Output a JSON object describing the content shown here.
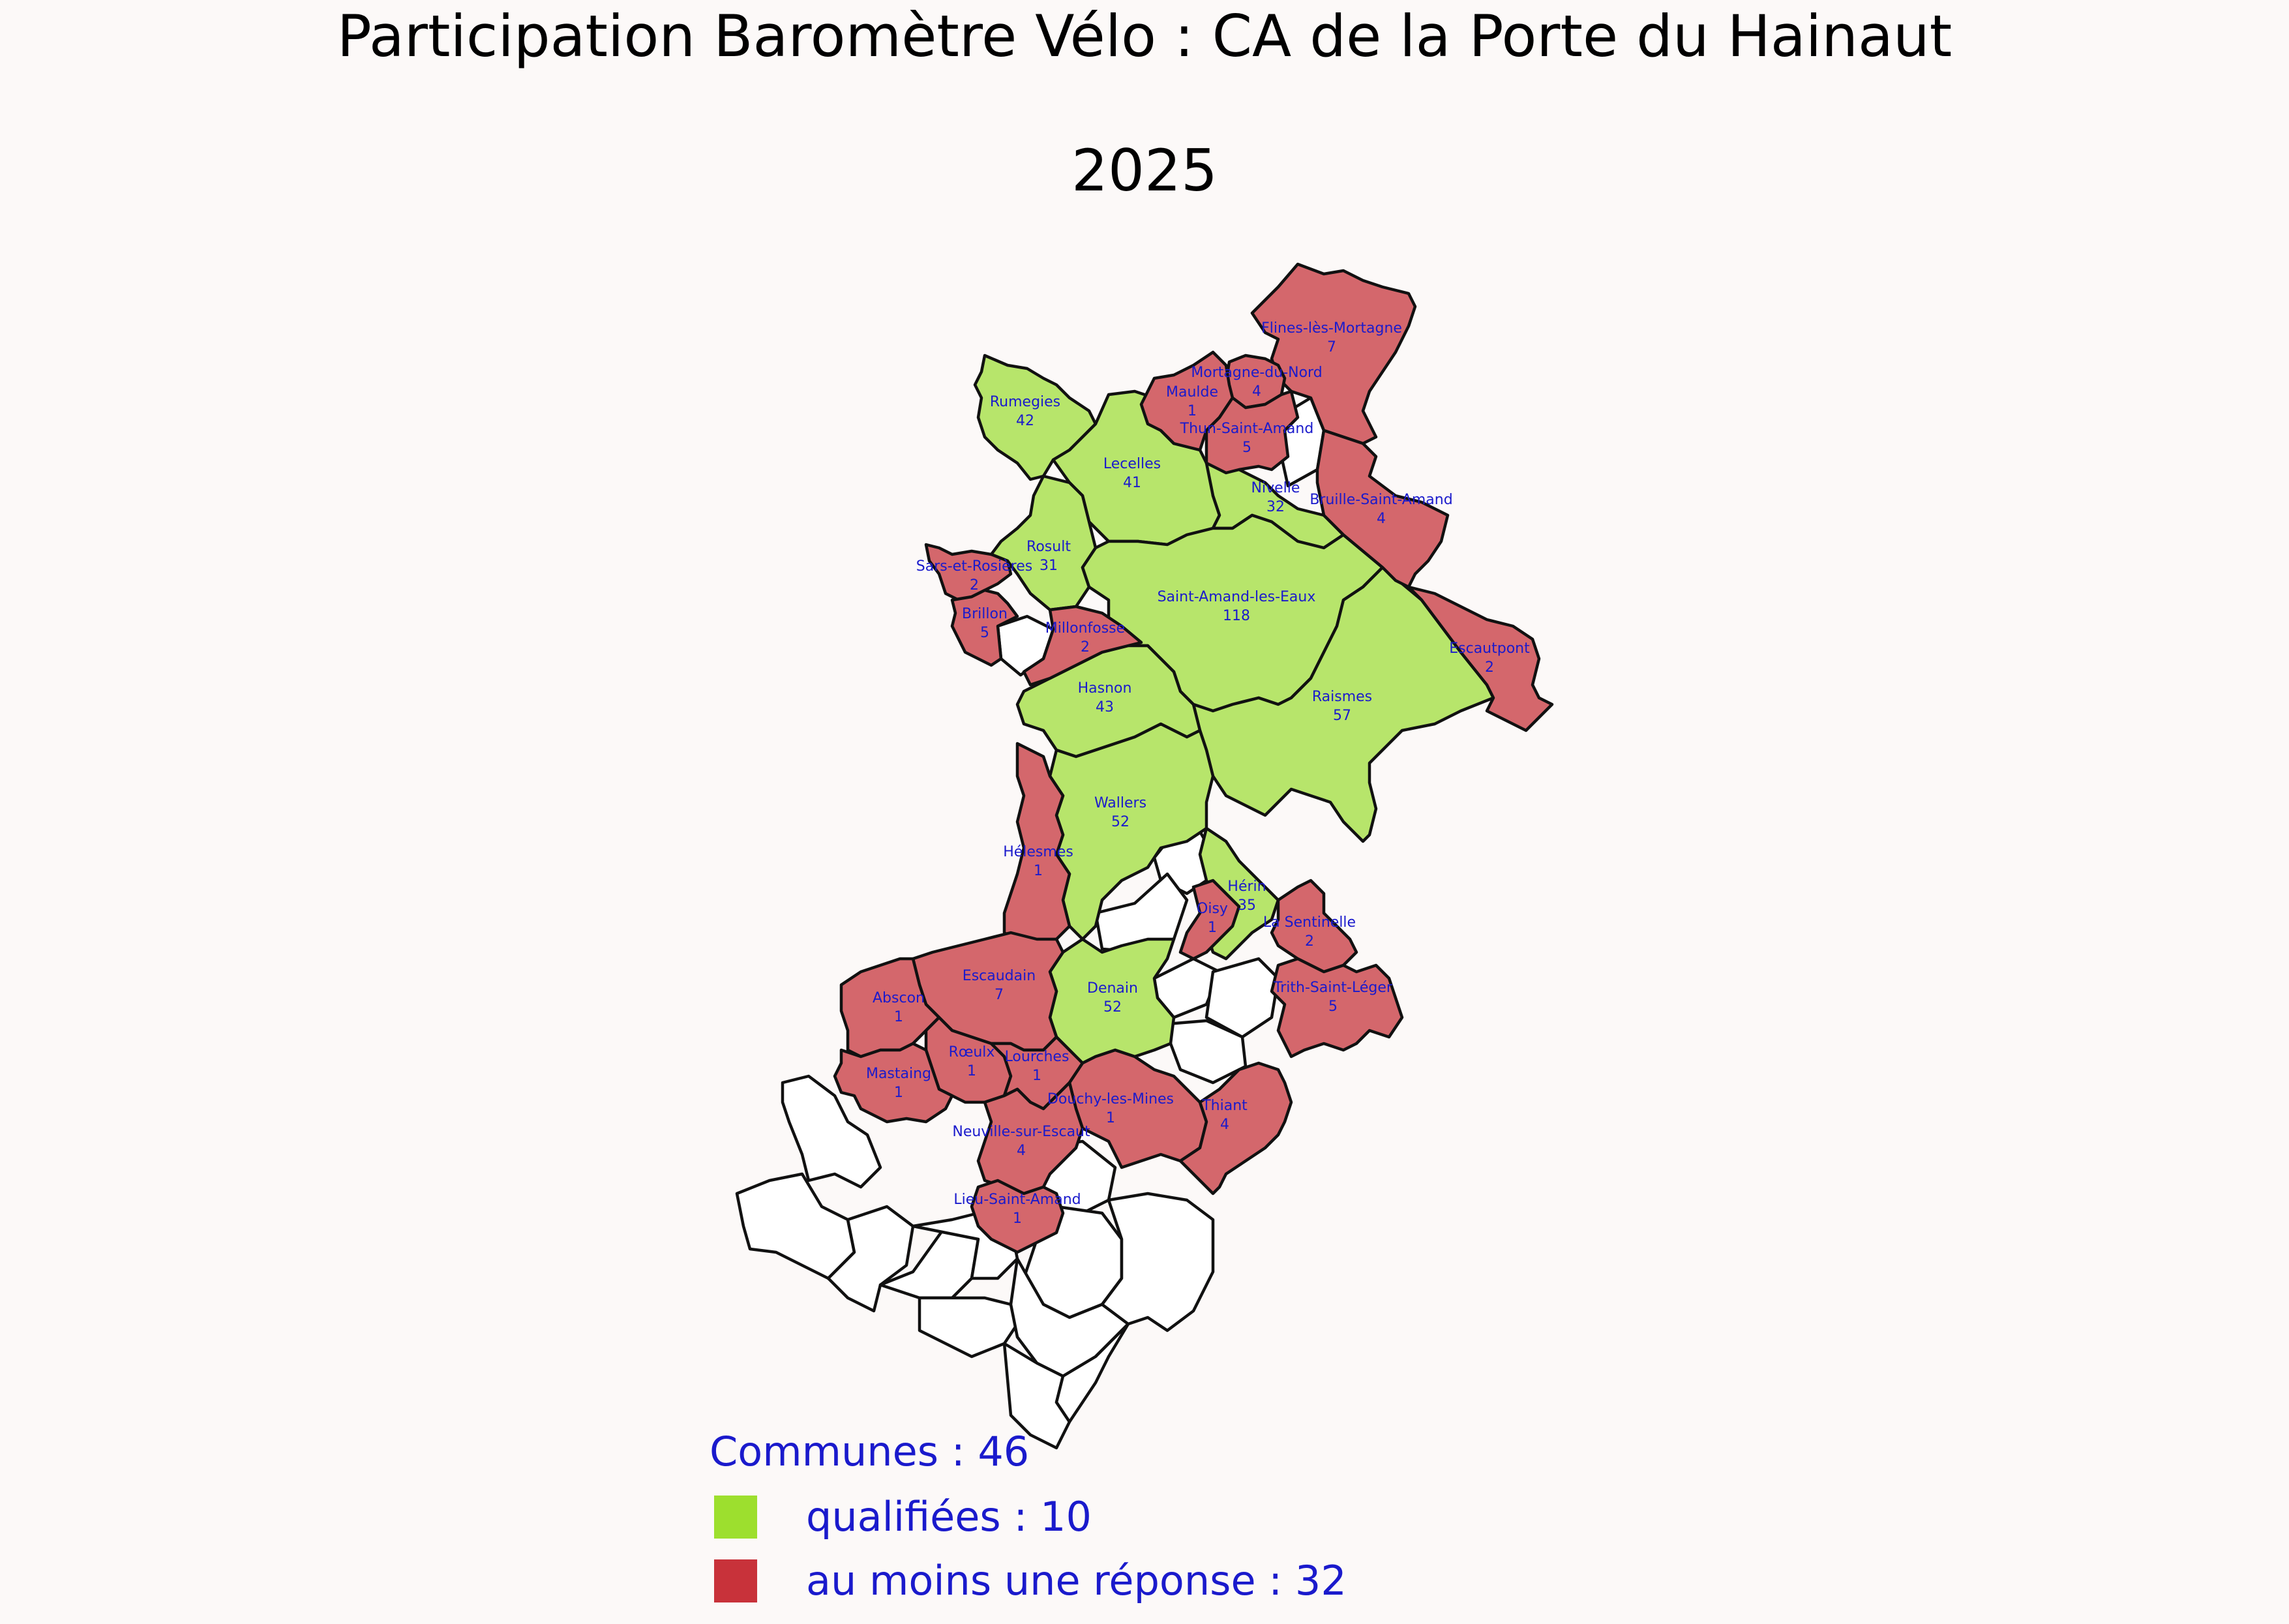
{
  "title": "Participation Baromètre Vélo :  CA de la Porte du Hainaut",
  "year": "2025",
  "colors": {
    "qualified": "#b7e56b",
    "responded": "#d4676c",
    "none": "#ffffff",
    "legend_qualified": "#9ddf2e",
    "legend_responded": "#c8323a",
    "label": "#1a1acc"
  },
  "communes": [
    {
      "name": "Flines-lès-Mortagne",
      "count": "7",
      "status": "responded"
    },
    {
      "name": "Mortagne-du-Nord",
      "count": "4",
      "status": "responded"
    },
    {
      "name": "Maulde",
      "count": "1",
      "status": "responded"
    },
    {
      "name": "Thun-Saint-Amand",
      "count": "5",
      "status": "responded"
    },
    {
      "name": "Rumegies",
      "count": "42",
      "status": "qualified"
    },
    {
      "name": "Lecelles",
      "count": "41",
      "status": "qualified"
    },
    {
      "name": "Nivelle",
      "count": "32",
      "status": "qualified"
    },
    {
      "name": "Bruille-Saint-Amand",
      "count": "4",
      "status": "responded"
    },
    {
      "name": "Rosult",
      "count": "31",
      "status": "qualified"
    },
    {
      "name": "Sars-et-Rosières",
      "count": "2",
      "status": "responded"
    },
    {
      "name": "Saint-Amand-les-Eaux",
      "count": "118",
      "status": "qualified"
    },
    {
      "name": "Brillon",
      "count": "5",
      "status": "responded"
    },
    {
      "name": "Millonfosse",
      "count": "2",
      "status": "responded"
    },
    {
      "name": "Escautpont",
      "count": "2",
      "status": "responded"
    },
    {
      "name": "Hasnon",
      "count": "43",
      "status": "qualified"
    },
    {
      "name": "Raismes",
      "count": "57",
      "status": "qualified"
    },
    {
      "name": "Wallers",
      "count": "52",
      "status": "qualified"
    },
    {
      "name": "Hélesmes",
      "count": "1",
      "status": "responded"
    },
    {
      "name": "Hérin",
      "count": "35",
      "status": "qualified"
    },
    {
      "name": "Oisy",
      "count": "1",
      "status": "responded"
    },
    {
      "name": "La Sentinelle",
      "count": "2",
      "status": "responded"
    },
    {
      "name": "Escaudain",
      "count": "7",
      "status": "responded"
    },
    {
      "name": "Abscon",
      "count": "1",
      "status": "responded"
    },
    {
      "name": "Denain",
      "count": "52",
      "status": "qualified"
    },
    {
      "name": "Trith-Saint-Léger",
      "count": "5",
      "status": "responded"
    },
    {
      "name": "Rœulx",
      "count": "1",
      "status": "responded"
    },
    {
      "name": "Lourches",
      "count": "1",
      "status": "responded"
    },
    {
      "name": "Mastaing",
      "count": "1",
      "status": "responded"
    },
    {
      "name": "Douchy-les-Mines",
      "count": "1",
      "status": "responded"
    },
    {
      "name": "Thiant",
      "count": "4",
      "status": "responded"
    },
    {
      "name": "Neuville-sur-Escaut",
      "count": "4",
      "status": "responded"
    },
    {
      "name": "Lieu-Saint-Amand",
      "count": "1",
      "status": "responded"
    }
  ],
  "legend": {
    "communes": "Communes : 46",
    "qualified": "qualifiées : 10",
    "responded": "au moins une réponse : 32"
  }
}
